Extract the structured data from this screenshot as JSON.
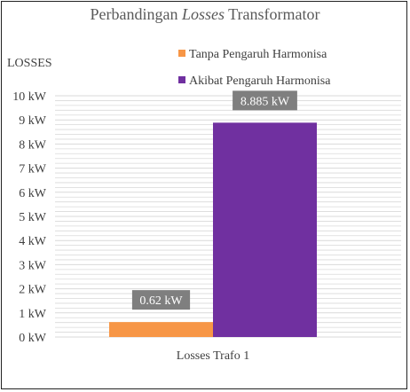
{
  "chart_data": {
    "type": "bar",
    "title": "Perbandingan Losses Transformator",
    "title_parts": {
      "before": "Perbandingan ",
      "italic": "Losses",
      "after": " Transformator"
    },
    "ylabel": "LOSSES",
    "categories": [
      "Losses Trafo 1"
    ],
    "series": [
      {
        "name": "Tanpa Pengaruh Harmonisa",
        "color": "#F79646",
        "values": [
          0.62
        ],
        "label": "0.62 kW"
      },
      {
        "name": "Akibat Pengaruh Harmonisa",
        "color": "#7030A0",
        "values": [
          8.885
        ],
        "label": "8.885 kW"
      }
    ],
    "ylim": [
      0,
      10
    ],
    "yticks": [
      {
        "value": 0,
        "label": "0 kW"
      },
      {
        "value": 1,
        "label": "1 kW"
      },
      {
        "value": 2,
        "label": "2 kW"
      },
      {
        "value": 3,
        "label": "3 kW"
      },
      {
        "value": 4,
        "label": "4 kW"
      },
      {
        "value": 5,
        "label": "5 kW"
      },
      {
        "value": 6,
        "label": "6 kW"
      },
      {
        "value": 7,
        "label": "7 kW"
      },
      {
        "value": 8,
        "label": "8 kW"
      },
      {
        "value": 9,
        "label": "9 kW"
      },
      {
        "value": 10,
        "label": "10 kW"
      }
    ],
    "minor_gridlines": 5,
    "grid": true,
    "legend_position": "top-right",
    "colors": {
      "grid": "#D9D9D9",
      "label_box": "#7F7F7F"
    }
  }
}
